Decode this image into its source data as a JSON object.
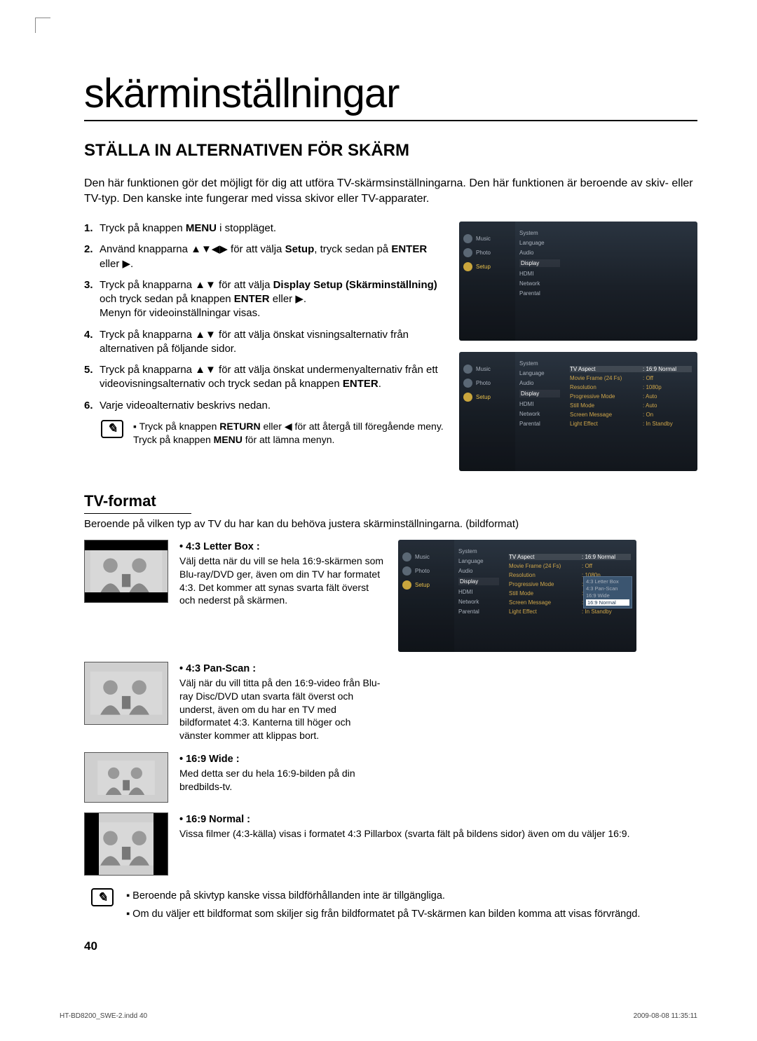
{
  "page": {
    "title": "skärminställningar",
    "section_title": "STÄLLA IN ALTERNATIVEN FÖR SKÄRM",
    "intro": "Den här funktionen gör det möjligt för dig att utföra TV-skärmsinställningarna. Den här funktionen är beroende av skiv- eller TV-typ. Den kanske inte fungerar med vissa skivor eller TV-apparater.",
    "page_num": "40",
    "footer_left": "HT-BD8200_SWE-2.indd   40",
    "footer_right": "2009-08-08    11:35:11"
  },
  "steps": [
    {
      "n": "1.",
      "html": "Tryck på knappen <b>MENU</b> i stoppläget."
    },
    {
      "n": "2.",
      "html": "Använd knapparna ▲▼◀▶ för att välja <b>Setup</b>, tryck sedan på <b>ENTER</b> eller ▶."
    },
    {
      "n": "3.",
      "html": "Tryck på knapparna ▲▼ för att välja <b>Display Setup (Skärminställning)</b> och tryck sedan på knappen <b>ENTER</b> eller ▶.<br>Menyn för videoinställningar visas."
    },
    {
      "n": "4.",
      "html": "Tryck på knapparna ▲▼ för att välja önskat visningsalternativ från alternativen på följande sidor."
    },
    {
      "n": "5.",
      "html": "Tryck på knapparna ▲▼ för att välja önskat undermenyalternativ från ett videovisningsalternativ och tryck sedan på knappen <b>ENTER</b>."
    },
    {
      "n": "6.",
      "html": "Varje videoalternativ beskrivs nedan."
    }
  ],
  "note1": "Tryck på knappen <b>RETURN</b> eller ◀ för att återgå till föregående meny. Tryck på knappen <b>MENU</b> för att lämna menyn.",
  "tv_menu": {
    "left_items": [
      "Music",
      "Photo",
      "Setup"
    ],
    "mid_items": [
      "System",
      "Language",
      "Audio",
      "Display",
      "HDMI",
      "Network",
      "Parental"
    ],
    "right_rows": [
      {
        "k": "TV Aspect",
        "v": ": 16:9 Normal",
        "white": true
      },
      {
        "k": "Movie Frame (24 Fs)",
        "v": ": Off"
      },
      {
        "k": "Resolution",
        "v": ": 1080p"
      },
      {
        "k": "Progressive Mode",
        "v": ": Auto"
      },
      {
        "k": "Still Mode",
        "v": ": Auto"
      },
      {
        "k": "Screen Message",
        "v": ": On"
      },
      {
        "k": "Light Effect",
        "v": ": In Standby"
      }
    ],
    "popup": [
      "4:3 Letter Box",
      "4:3 Pan-Scan",
      "16:9 Wide",
      "16:9 Normal"
    ]
  },
  "tvformat": {
    "title": "TV-format",
    "intro": "Beroende på vilken typ av TV du har kan du behöva justera skärminställningarna. (bildformat)",
    "items": [
      {
        "title": "4:3 Letter Box :",
        "body": "Välj detta när du vill se hela 16:9-skärmen som Blu-ray/DVD ger, även om din TV har formatet 4:3. Det kommer att synas svarta fält överst och nederst på skärmen.",
        "mode": "letterbox"
      },
      {
        "title": "4:3 Pan-Scan :",
        "body": "Välj när du vill titta på den 16:9-video från Blu-ray Disc/DVD utan svarta fält överst och underst, även om du har en TV med bildformatet 4:3. Kanterna till höger och vänster kommer att klippas bort.",
        "mode": "panscan"
      },
      {
        "title": "16:9 Wide :",
        "body": "Med detta ser du hela 16:9-bilden på din bredbilds-tv.",
        "mode": "wide"
      },
      {
        "title": "16:9 Normal :",
        "body": "Vissa filmer (4:3-källa) visas i formatet 4:3 Pillarbox (svarta fält på bildens sidor) även om du väljer 16:9.",
        "mode": "pillar"
      }
    ]
  },
  "bottom_notes": [
    "Beroende på skivtyp kanske vissa bildförhållanden inte är tillgängliga.",
    "Om du väljer ett bildformat som skiljer sig från bildformatet på TV-skärmen kan bilden komma att visas förvrängd."
  ]
}
